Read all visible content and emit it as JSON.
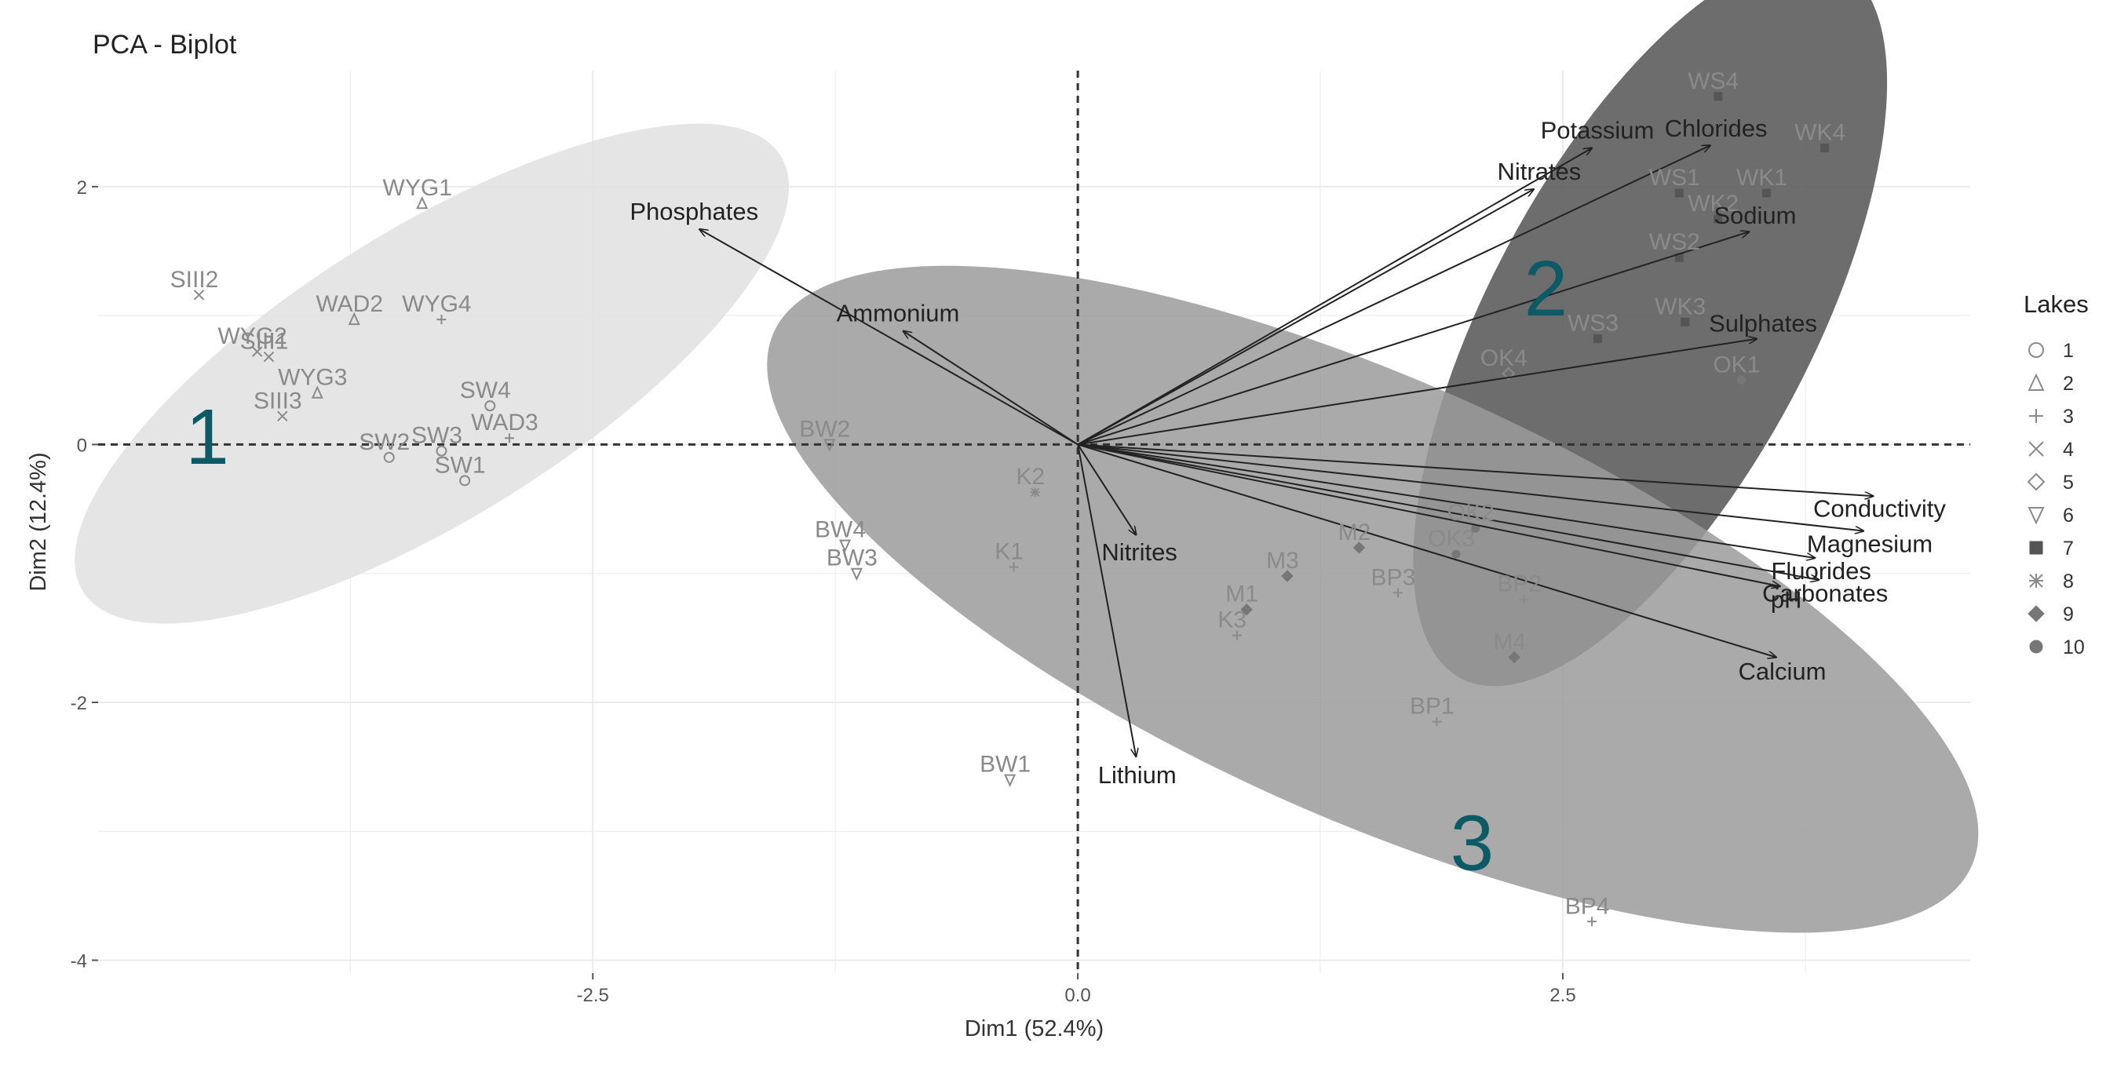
{
  "title": "PCA - Biplot",
  "chart_data": {
    "type": "scatter",
    "subtype": "pca-biplot",
    "title": "PCA - Biplot",
    "xlabel": "Dim1 (52.4%)",
    "ylabel": "Dim2 (12.4%)",
    "xlim": [
      -5.05,
      4.6
    ],
    "ylim": [
      -4.1,
      2.9
    ],
    "x_ticks": [
      -2.5,
      0.0,
      2.5
    ],
    "x_tick_labels": [
      "-2.5",
      "0.0",
      "2.5"
    ],
    "y_ticks": [
      -4,
      -2,
      0,
      2
    ],
    "y_tick_labels": [
      "-4",
      "-2",
      "0",
      "2"
    ],
    "grid": true,
    "reference_lines": [
      {
        "axis": "x",
        "value": 0,
        "style": "dashed"
      },
      {
        "axis": "y",
        "value": 0,
        "style": "dashed"
      }
    ],
    "legend": {
      "title": "Lakes",
      "position": "right",
      "entries": [
        "1",
        "2",
        "3",
        "4",
        "5",
        "6",
        "7",
        "8",
        "9",
        "10"
      ]
    },
    "colors": {
      "group1": "#e2e2e2",
      "group2": "#595959",
      "group3": "#9b9b9b",
      "cluster_label": "#0c5a66",
      "points": "#8a8a8a",
      "arrows": "#222222"
    },
    "clusters": [
      {
        "label": "1",
        "center": [
          -3.33,
          0.55
        ],
        "rx": 2.12,
        "ry": 1.12,
        "angle_deg": 32,
        "color": "#e2e2e2",
        "opacity": 0.9,
        "label_at": [
          -4.6,
          -0.15
        ]
      },
      {
        "label": "2",
        "center": [
          2.95,
          0.95
        ],
        "rx": 2.08,
        "ry": 1.25,
        "angle_deg": 62,
        "color": "#595959",
        "opacity": 0.88,
        "label_at": [
          2.3,
          1.0
        ]
      },
      {
        "label": "3",
        "center": [
          1.52,
          -1.2
        ],
        "rx": 3.38,
        "ry": 1.7,
        "angle_deg": -24,
        "color": "#9b9b9b",
        "opacity": 0.85,
        "label_at": [
          1.92,
          -3.3
        ]
      }
    ],
    "observations": [
      {
        "label": "SIII2",
        "x": -4.53,
        "y": 1.16,
        "lake": 4
      },
      {
        "label": "SIII1",
        "x": -4.17,
        "y": 0.68,
        "lake": 4
      },
      {
        "label": "SIII3",
        "x": -4.1,
        "y": 0.22,
        "lake": 4
      },
      {
        "label": "WYG1",
        "x": -3.38,
        "y": 1.87,
        "lake": 2
      },
      {
        "label": "WYG2",
        "x": -4.23,
        "y": 0.72,
        "lake": 4
      },
      {
        "label": "WYG3",
        "x": -3.92,
        "y": 0.4,
        "lake": 2
      },
      {
        "label": "WYG4",
        "x": -3.28,
        "y": 0.97,
        "lake": 3
      },
      {
        "label": "WAD2",
        "x": -3.73,
        "y": 0.97,
        "lake": 2
      },
      {
        "label": "WAD3",
        "x": -2.93,
        "y": 0.05,
        "lake": 3
      },
      {
        "label": "SW1",
        "x": -3.16,
        "y": -0.28,
        "lake": 1
      },
      {
        "label": "SW2",
        "x": -3.55,
        "y": -0.1,
        "lake": 1
      },
      {
        "label": "SW3",
        "x": -3.28,
        "y": -0.05,
        "lake": 1
      },
      {
        "label": "SW4",
        "x": -3.03,
        "y": 0.3,
        "lake": 1
      },
      {
        "label": "BW1",
        "x": -0.35,
        "y": -2.6,
        "lake": 6
      },
      {
        "label": "BW2",
        "x": -1.28,
        "y": 0.0,
        "lake": 6
      },
      {
        "label": "BW3",
        "x": -1.14,
        "y": -1.0,
        "lake": 6
      },
      {
        "label": "BW4",
        "x": -1.2,
        "y": -0.78,
        "lake": 6
      },
      {
        "label": "K1",
        "x": -0.33,
        "y": -0.95,
        "lake": 3
      },
      {
        "label": "K2",
        "x": -0.22,
        "y": -0.37,
        "lake": 8
      },
      {
        "label": "K3",
        "x": 0.82,
        "y": -1.48,
        "lake": 3
      },
      {
        "label": "M1",
        "x": 0.87,
        "y": -1.28,
        "lake": 9
      },
      {
        "label": "M2",
        "x": 1.45,
        "y": -0.8,
        "lake": 9
      },
      {
        "label": "M3",
        "x": 1.08,
        "y": -1.02,
        "lake": 9
      },
      {
        "label": "M4",
        "x": 2.25,
        "y": -1.65,
        "lake": 9
      },
      {
        "label": "BP1",
        "x": 1.85,
        "y": -2.15,
        "lake": 3
      },
      {
        "label": "BP2",
        "x": 2.3,
        "y": -1.2,
        "lake": 3
      },
      {
        "label": "BP3",
        "x": 1.65,
        "y": -1.15,
        "lake": 3
      },
      {
        "label": "BP4",
        "x": 2.65,
        "y": -3.7,
        "lake": 3
      },
      {
        "label": "OK1",
        "x": 3.42,
        "y": 0.5,
        "lake": 10
      },
      {
        "label": "OK2",
        "x": 2.05,
        "y": -0.65,
        "lake": 10
      },
      {
        "label": "OK3",
        "x": 1.95,
        "y": -0.85,
        "lake": 10
      },
      {
        "label": "OK4",
        "x": 2.22,
        "y": 0.55,
        "lake": 5
      },
      {
        "label": "WS1",
        "x": 3.1,
        "y": 1.95,
        "lake": 7
      },
      {
        "label": "WS2",
        "x": 3.1,
        "y": 1.45,
        "lake": 7
      },
      {
        "label": "WS3",
        "x": 2.68,
        "y": 0.82,
        "lake": 7
      },
      {
        "label": "WS4",
        "x": 3.3,
        "y": 2.7,
        "lake": 7
      },
      {
        "label": "WK1",
        "x": 3.55,
        "y": 1.95,
        "lake": 7
      },
      {
        "label": "WK2",
        "x": 3.3,
        "y": 1.75,
        "lake": 7
      },
      {
        "label": "WK3",
        "x": 3.13,
        "y": 0.95,
        "lake": 7
      },
      {
        "label": "WK4",
        "x": 3.85,
        "y": 2.3,
        "lake": 7
      }
    ],
    "variables": [
      {
        "name": "Phosphates",
        "x": -1.95,
        "y": 1.67
      },
      {
        "name": "Ammonium",
        "x": -0.9,
        "y": 0.88
      },
      {
        "name": "Potassium",
        "x": 2.65,
        "y": 2.3
      },
      {
        "name": "Nitrates",
        "x": 2.35,
        "y": 1.98
      },
      {
        "name": "Chlorides",
        "x": 3.26,
        "y": 2.32
      },
      {
        "name": "Sodium",
        "x": 3.46,
        "y": 1.65
      },
      {
        "name": "Sulphates",
        "x": 3.5,
        "y": 0.82
      },
      {
        "name": "Conductivity",
        "x": 4.1,
        "y": -0.4
      },
      {
        "name": "Magnesium",
        "x": 4.05,
        "y": -0.67
      },
      {
        "name": "Fluorides",
        "x": 3.8,
        "y": -0.88
      },
      {
        "name": "pH",
        "x": 3.62,
        "y": -1.1
      },
      {
        "name": "Carbonates",
        "x": 3.82,
        "y": -1.05
      },
      {
        "name": "Calcium",
        "x": 3.6,
        "y": -1.65
      },
      {
        "name": "Nitrites",
        "x": 0.3,
        "y": -0.7
      },
      {
        "name": "Lithium",
        "x": 0.3,
        "y": -2.42
      }
    ]
  }
}
